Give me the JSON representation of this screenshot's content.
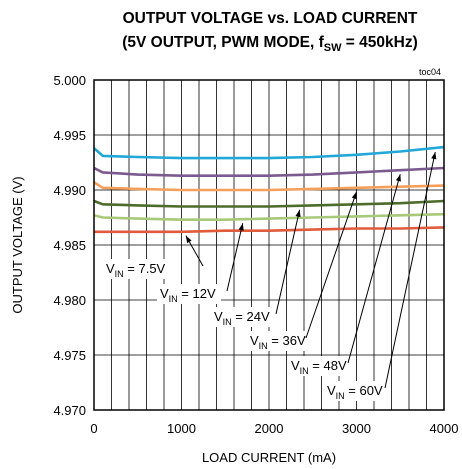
{
  "chart_data": {
    "type": "line",
    "title": "OUTPUT VOLTAGE vs. LOAD CURRENT",
    "subtitle_prefix": "(5V OUTPUT, PWM MODE, f",
    "subtitle_sub": "SW",
    "subtitle_suffix": " = 450kHz)",
    "code": "toc04",
    "xlabel": "LOAD CURRENT (mA)",
    "ylabel": "OUTPUT VOLTAGE (V)",
    "xlim": [
      0,
      4000
    ],
    "ylim": [
      4.97,
      5.0
    ],
    "x_ticks": [
      "0",
      "1000",
      "2000",
      "3000",
      "4000"
    ],
    "y_ticks": [
      "4.970",
      "4.975",
      "4.980",
      "4.985",
      "4.990",
      "4.995",
      "5.000"
    ],
    "grid": true,
    "series": [
      {
        "name_prefix": "V",
        "name_sub": "IN",
        "name_suffix": " = 7.5V",
        "color": "#e05a3c",
        "x": [
          0,
          100,
          500,
          1000,
          1500,
          2000,
          2500,
          3000,
          3500,
          4000
        ],
        "y": [
          4.9862,
          4.9862,
          4.9862,
          4.9862,
          4.9863,
          4.9863,
          4.9864,
          4.9865,
          4.9865,
          4.9866
        ]
      },
      {
        "name_prefix": "V",
        "name_sub": "IN",
        "name_suffix": " = 12V",
        "color": "#a8c87a",
        "x": [
          0,
          100,
          500,
          1000,
          1500,
          2000,
          2500,
          3000,
          3500,
          4000
        ],
        "y": [
          4.9877,
          4.9875,
          4.9874,
          4.9873,
          4.9873,
          4.9874,
          4.9875,
          4.9876,
          4.9877,
          4.9878
        ]
      },
      {
        "name_prefix": "V",
        "name_sub": "IN",
        "name_suffix": " = 24V",
        "color": "#4d6b2a",
        "x": [
          0,
          100,
          500,
          1000,
          1500,
          2000,
          2500,
          3000,
          3500,
          4000
        ],
        "y": [
          4.989,
          4.9887,
          4.9886,
          4.9885,
          4.9885,
          4.9885,
          4.9886,
          4.9887,
          4.9888,
          4.989
        ]
      },
      {
        "name_prefix": "V",
        "name_sub": "IN",
        "name_suffix": " = 36V",
        "color": "#f5a05a",
        "x": [
          0,
          100,
          500,
          1000,
          1500,
          2000,
          2500,
          3000,
          3500,
          4000
        ],
        "y": [
          4.9907,
          4.9902,
          4.9901,
          4.99,
          4.99,
          4.99,
          4.9901,
          4.9902,
          4.9903,
          4.9904
        ]
      },
      {
        "name_prefix": "V",
        "name_sub": "IN",
        "name_suffix": " = 48V",
        "color": "#7b5a8e",
        "x": [
          0,
          100,
          500,
          1000,
          1500,
          2000,
          2500,
          3000,
          3500,
          4000
        ],
        "y": [
          4.992,
          4.9916,
          4.9914,
          4.9913,
          4.9913,
          4.9913,
          4.9914,
          4.9916,
          4.9918,
          4.992
        ]
      },
      {
        "name_prefix": "V",
        "name_sub": "IN",
        "name_suffix": " = 60V",
        "color": "#22a8d8",
        "x": [
          0,
          100,
          500,
          1000,
          1500,
          2000,
          2500,
          3000,
          3500,
          4000
        ],
        "y": [
          4.9938,
          4.9931,
          4.993,
          4.9929,
          4.9929,
          4.9929,
          4.993,
          4.9932,
          4.9935,
          4.9939
        ]
      }
    ]
  }
}
